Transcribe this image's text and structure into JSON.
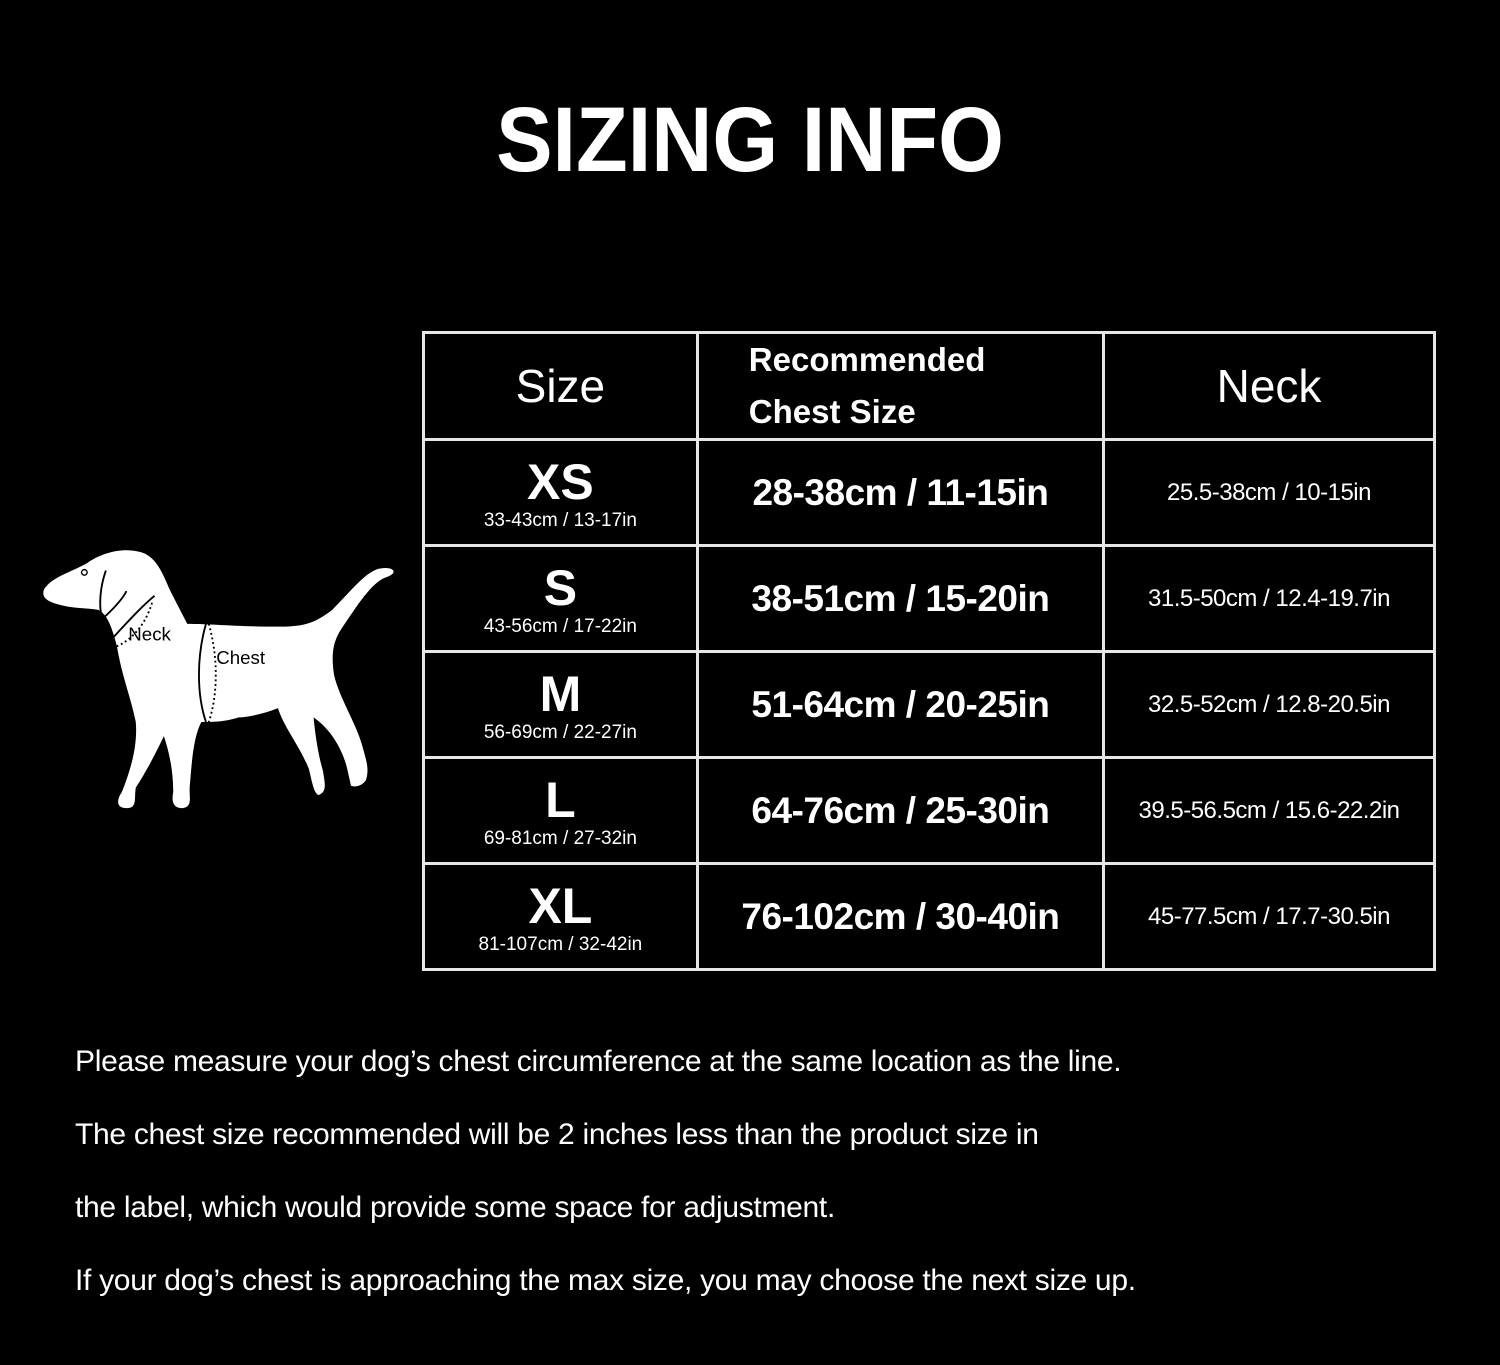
{
  "title": "SIZING INFO",
  "diagram": {
    "neck_label": "Neck",
    "chest_label": "Chest"
  },
  "table": {
    "headers": [
      "Size",
      "Recommended",
      "Chest Size",
      "Neck"
    ],
    "rows": [
      {
        "size": "XS",
        "product": "33-43cm / 13-17in",
        "chest": "28-38cm / 11-15in",
        "neck": "25.5-38cm / 10-15in"
      },
      {
        "size": "S",
        "product": "43-56cm / 17-22in",
        "chest": "38-51cm / 15-20in",
        "neck": "31.5-50cm / 12.4-19.7in"
      },
      {
        "size": "M",
        "product": "56-69cm / 22-27in",
        "chest": "51-64cm / 20-25in",
        "neck": "32.5-52cm / 12.8-20.5in"
      },
      {
        "size": "L",
        "product": "69-81cm / 27-32in",
        "chest": "64-76cm / 25-30in",
        "neck": "39.5-56.5cm / 15.6-22.2in"
      },
      {
        "size": "XL",
        "product": "81-107cm / 32-42in",
        "chest": "76-102cm / 30-40in",
        "neck": "45-77.5cm / 17.7-30.5in"
      }
    ]
  },
  "notes": [
    "Please measure your dog’s chest circumference at the same location as the line.",
    "The chest size recommended will be 2 inches less than the product size in",
    "the label, which would provide some space for adjustment.",
    "If your dog’s chest is approaching the max size, you may choose the next size up."
  ]
}
